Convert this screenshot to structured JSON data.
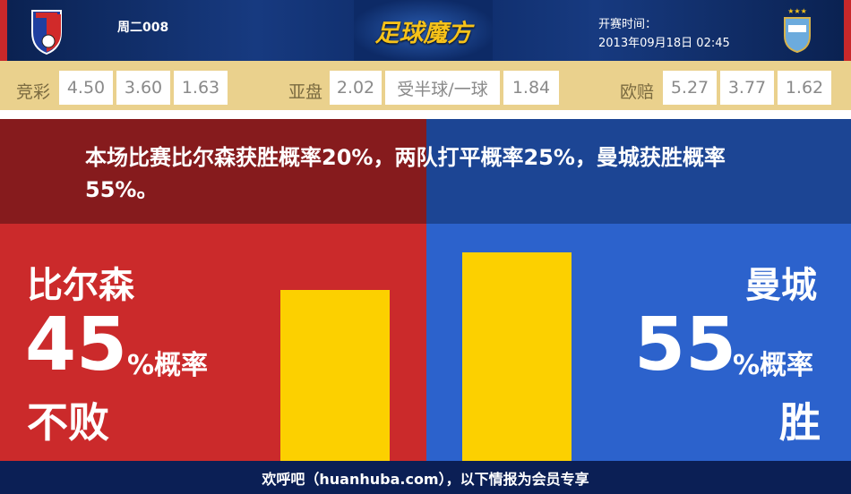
{
  "header": {
    "match_no": "周二008",
    "logo_text": "足球魔方",
    "kickoff_label": "开赛时间：",
    "kickoff_time": "2013年09月18日 02:45",
    "home_crest": "FC Viktoria Plzeň",
    "away_crest": "Manchester City"
  },
  "odds": {
    "jingcai": {
      "label": "竞彩",
      "values": [
        "4.50",
        "3.60",
        "1.63"
      ]
    },
    "yapan": {
      "label": "亚盘",
      "values": [
        "2.02",
        "受半球/一球",
        "1.84"
      ]
    },
    "oupei": {
      "label": "欧赔",
      "values": [
        "5.27",
        "3.77",
        "1.62"
      ]
    }
  },
  "banner": "本场比赛比尔森获胜概率20%，两队打平概率25%，曼城获胜概率55%。",
  "home": {
    "team": "比尔森",
    "percent": 45,
    "percent_text": "45",
    "pct_label": "%概率",
    "result": "不败"
  },
  "away": {
    "team": "曼城",
    "percent": 55,
    "percent_text": "55",
    "pct_label": "%概率",
    "result": "胜"
  },
  "footer": "欢呼吧（huanhuba.com），以下情报为会员专享",
  "colors": {
    "home": "#cb2a2b",
    "away": "#2c62cc",
    "bar": "#fcd000",
    "odds_bg": "#ead18d"
  }
}
